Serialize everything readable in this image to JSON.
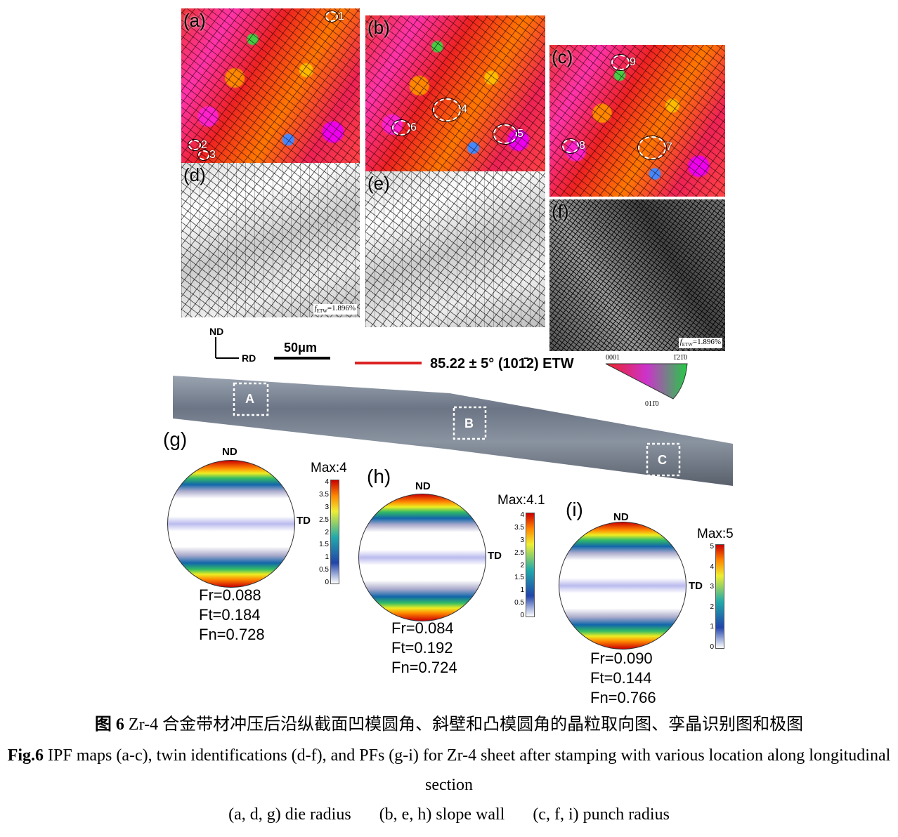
{
  "ipf_maps": [
    {
      "label": "(a)",
      "markers": [
        "1",
        "2",
        "3"
      ]
    },
    {
      "label": "(b)",
      "markers": [
        "4",
        "6",
        "5"
      ]
    },
    {
      "label": "(c)",
      "markers": [
        "9",
        "8",
        "7"
      ]
    }
  ],
  "twin_maps": [
    {
      "label": "(d)",
      "fraction": {
        "symbol": "f",
        "subscript": "ETW",
        "value": "=1.896%"
      }
    },
    {
      "label": "(e)"
    },
    {
      "label": "(f)",
      "fraction": {
        "symbol": "f",
        "subscript": "ETW",
        "value": "=1.896%"
      }
    }
  ],
  "legend": {
    "nd": "ND",
    "rd": "RD",
    "scale": "50μm",
    "twin": "85.22 ± 5° (101̄2) ETW",
    "ipf_corners": [
      "0001",
      "1̄21̄0",
      "011̄0"
    ]
  },
  "sheet": {
    "regions": [
      "A",
      "B",
      "C"
    ]
  },
  "pole_figures": [
    {
      "label": "(g)",
      "nd": "ND",
      "td": "TD",
      "max": "Max:4",
      "ticks": [
        0,
        0.5,
        1,
        1.5,
        2,
        2.5,
        3,
        3.5,
        4
      ],
      "fractions": [
        "Fr=0.088",
        "Ft=0.184",
        "Fn=0.728"
      ]
    },
    {
      "label": "(h)",
      "nd": "ND",
      "td": "TD",
      "max": "Max:4.1",
      "ticks": [
        0,
        0.5,
        1,
        1.5,
        2,
        2.5,
        3,
        3.5,
        4
      ],
      "fractions": [
        "Fr=0.084",
        "Ft=0.192",
        "Fn=0.724"
      ]
    },
    {
      "label": "(i)",
      "nd": "ND",
      "td": "TD",
      "max": "Max:5",
      "ticks": [
        0,
        1,
        2,
        3,
        4,
        5
      ],
      "fractions": [
        "Fr=0.090",
        "Ft=0.144",
        "Fn=0.766"
      ]
    }
  ],
  "caption": {
    "cn_label": "图 6",
    "cn_text": "Zr-4 合金带材冲压后沿纵截面凹模圆角、斜壁和凸模圆角的晶粒取向图、孪晶识别图和极图",
    "en_label": "Fig.6",
    "en_text": "IPF maps (a-c), twin identifications (d-f), and PFs (g-i) for Zr-4 sheet after stamping with various location along longitudinal section",
    "subs": [
      "(a, d, g) die radius",
      "(b, e, h) slope wall",
      "(c, f, i) punch radius"
    ]
  }
}
